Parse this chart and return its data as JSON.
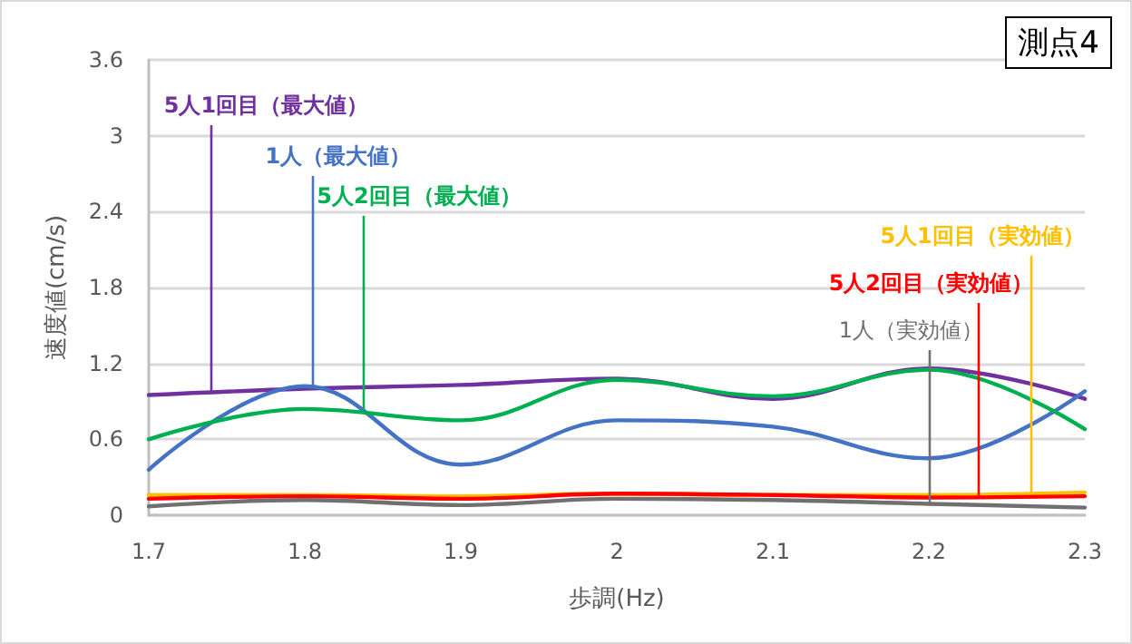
{
  "chart_data": {
    "type": "line",
    "xlabel": "歩調(Hz)",
    "ylabel": "速度値(cm/s)",
    "x": [
      1.7,
      1.8,
      1.9,
      2.0,
      2.1,
      2.2,
      2.3
    ],
    "series": [
      {
        "color": "#7030a0",
        "values": [
          0.95,
          1.0,
          1.03,
          1.08,
          0.92,
          1.16,
          0.92
        ]
      },
      {
        "color": "#4472c4",
        "values": [
          0.36,
          1.02,
          0.4,
          0.75,
          0.7,
          0.45,
          0.98
        ]
      },
      {
        "color": "#00b050",
        "values": [
          0.6,
          0.84,
          0.75,
          1.07,
          0.94,
          1.15,
          0.68
        ]
      },
      {
        "color": "#ffc000",
        "values": [
          0.16,
          0.16,
          0.15,
          0.17,
          0.16,
          0.16,
          0.18
        ]
      },
      {
        "color": "#ff0000",
        "values": [
          0.13,
          0.15,
          0.13,
          0.17,
          0.16,
          0.14,
          0.15
        ]
      },
      {
        "color": "#707070",
        "values": [
          0.07,
          0.12,
          0.08,
          0.13,
          0.12,
          0.09,
          0.06
        ]
      }
    ],
    "annotations": [
      {
        "text": "5人1回目（最大値）",
        "x": 1.74,
        "y": 0.97
      },
      {
        "text": "1人（最大値）",
        "x": 1.805,
        "y": 1.02
      },
      {
        "text": "5人2回目（最大値）",
        "x": 1.838,
        "y": 0.84
      },
      {
        "text": "5人1回目（実効値）",
        "x": 2.265,
        "y": 0.17
      },
      {
        "text": "5人2回目（実効値）",
        "x": 2.232,
        "y": 0.15
      },
      {
        "text": "1人（実効値）",
        "x": 2.2,
        "y": 0.1
      },
      "測点4"
    ],
    "xlim": [
      1.7,
      2.3
    ],
    "xticks": [
      1.7,
      1.8,
      1.9,
      2,
      2.1,
      2.2,
      2.3
    ],
    "ylim": [
      0,
      3.6
    ],
    "yticks": [
      0,
      0.6,
      1.2,
      1.8,
      2.4,
      3,
      3.6
    ],
    "grid": "y",
    "marker": "none",
    "line_style": "solid"
  }
}
